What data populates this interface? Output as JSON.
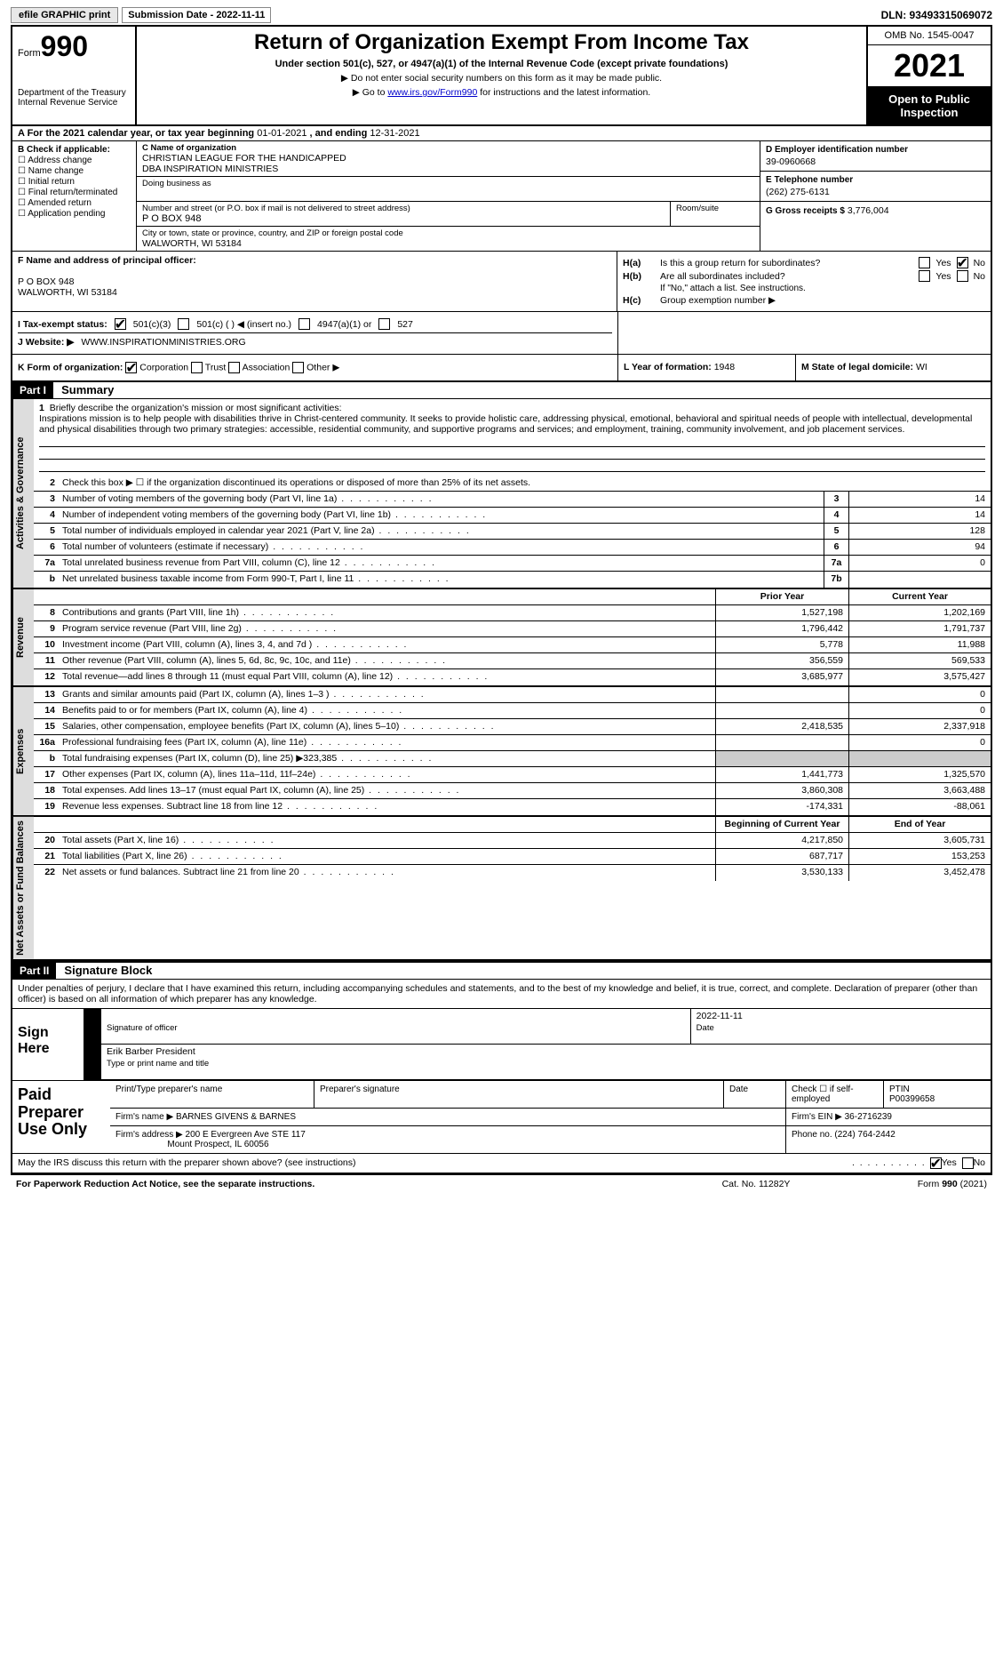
{
  "top": {
    "efile": "efile GRAPHIC print",
    "sub_date_lbl": "Submission Date - 2022-11-11",
    "dln": "DLN: 93493315069072"
  },
  "header": {
    "form_word": "Form",
    "form_num": "990",
    "dept": "Department of the Treasury",
    "irs": "Internal Revenue Service",
    "title": "Return of Organization Exempt From Income Tax",
    "sub1": "Under section 501(c), 527, or 4947(a)(1) of the Internal Revenue Code (except private foundations)",
    "sub2": "▶ Do not enter social security numbers on this form as it may be made public.",
    "sub3_pre": "▶ Go to ",
    "sub3_link": "www.irs.gov/Form990",
    "sub3_post": " for instructions and the latest information.",
    "omb": "OMB No. 1545-0047",
    "year": "2021",
    "inspect": "Open to Public Inspection"
  },
  "lineA": {
    "pre": "A For the 2021 calendar year, or tax year beginning ",
    "begin": "01-01-2021",
    "mid": " , and ending ",
    "end": "12-31-2021"
  },
  "colB": {
    "hd": "B Check if applicable:",
    "opts": [
      "Address change",
      "Name change",
      "Initial return",
      "Final return/terminated",
      "Amended return",
      "Application pending"
    ]
  },
  "colC": {
    "name_lbl": "C Name of organization",
    "name1": "CHRISTIAN LEAGUE FOR THE HANDICAPPED",
    "name2": "DBA INSPIRATION MINISTRIES",
    "dba_lbl": "Doing business as",
    "addr_lbl": "Number and street (or P.O. box if mail is not delivered to street address)",
    "addr": "P O BOX 948",
    "room_lbl": "Room/suite",
    "city_lbl": "City or town, state or province, country, and ZIP or foreign postal code",
    "city": "WALWORTH, WI  53184"
  },
  "colD": {
    "ein_lbl": "D Employer identification number",
    "ein": "39-0960668",
    "phone_lbl": "E Telephone number",
    "phone": "(262) 275-6131",
    "gross_lbl": "G Gross receipts $",
    "gross": "3,776,004"
  },
  "rowF": {
    "lbl": "F  Name and address of principal officer:",
    "addr1": "P O BOX 948",
    "addr2": "WALWORTH, WI  53184"
  },
  "rowH": {
    "ha_lbl": "H(a)",
    "ha_txt": "Is this a group return for subordinates?",
    "hb_lbl": "H(b)",
    "hb_txt": "Are all subordinates included?",
    "hb_note": "If \"No,\" attach a list. See instructions.",
    "hc_lbl": "H(c)",
    "hc_txt": "Group exemption number ▶",
    "yes": "Yes",
    "no": "No"
  },
  "rowI": {
    "lbl": "I  Tax-exempt status:",
    "o1": "501(c)(3)",
    "o2": "501(c) (  ) ◀ (insert no.)",
    "o3": "4947(a)(1) or",
    "o4": "527"
  },
  "rowJ": {
    "lbl": "J  Website: ▶",
    "val": "WWW.INSPIRATIONMINISTRIES.ORG"
  },
  "rowK": {
    "lbl": "K Form of organization:",
    "opts": [
      "Corporation",
      "Trust",
      "Association",
      "Other ▶"
    ],
    "l_lbl": "L Year of formation:",
    "l_val": "1948",
    "m_lbl": "M State of legal domicile:",
    "m_val": "WI"
  },
  "part1": {
    "hdr": "Part I",
    "title": "Summary",
    "l1_lbl": "1",
    "l1_txt": "Briefly describe the organization's mission or most significant activities:",
    "mission": "Inspirations mission is to help people with disabilities thrive in Christ-centered community. It seeks to provide holistic care, addressing physical, emotional, behavioral and spiritual needs of people with intellectual, developmental and physical disabilities through two primary strategies: accessible, residential community, and supportive programs and services; and employment, training, community involvement, and job placement services.",
    "l2": "Check this box ▶ ☐  if the organization discontinued its operations or disposed of more than 25% of its net assets.",
    "tabs": {
      "gov": "Activities & Governance",
      "rev": "Revenue",
      "exp": "Expenses",
      "net": "Net Assets or Fund Balances"
    },
    "rows_gov": [
      {
        "n": "3",
        "d": "Number of voting members of the governing body (Part VI, line 1a)",
        "box": "3",
        "v": "14"
      },
      {
        "n": "4",
        "d": "Number of independent voting members of the governing body (Part VI, line 1b)",
        "box": "4",
        "v": "14"
      },
      {
        "n": "5",
        "d": "Total number of individuals employed in calendar year 2021 (Part V, line 2a)",
        "box": "5",
        "v": "128"
      },
      {
        "n": "6",
        "d": "Total number of volunteers (estimate if necessary)",
        "box": "6",
        "v": "94"
      },
      {
        "n": "7a",
        "d": "Total unrelated business revenue from Part VIII, column (C), line 12",
        "box": "7a",
        "v": "0"
      },
      {
        "n": "b",
        "d": "Net unrelated business taxable income from Form 990-T, Part I, line 11",
        "box": "7b",
        "v": ""
      }
    ],
    "col_hdrs": {
      "prior": "Prior Year",
      "curr": "Current Year"
    },
    "rows_rev": [
      {
        "n": "8",
        "d": "Contributions and grants (Part VIII, line 1h)",
        "p": "1,527,198",
        "c": "1,202,169"
      },
      {
        "n": "9",
        "d": "Program service revenue (Part VIII, line 2g)",
        "p": "1,796,442",
        "c": "1,791,737"
      },
      {
        "n": "10",
        "d": "Investment income (Part VIII, column (A), lines 3, 4, and 7d )",
        "p": "5,778",
        "c": "11,988"
      },
      {
        "n": "11",
        "d": "Other revenue (Part VIII, column (A), lines 5, 6d, 8c, 9c, 10c, and 11e)",
        "p": "356,559",
        "c": "569,533"
      },
      {
        "n": "12",
        "d": "Total revenue—add lines 8 through 11 (must equal Part VIII, column (A), line 12)",
        "p": "3,685,977",
        "c": "3,575,427"
      }
    ],
    "rows_exp": [
      {
        "n": "13",
        "d": "Grants and similar amounts paid (Part IX, column (A), lines 1–3 )",
        "p": "",
        "c": "0"
      },
      {
        "n": "14",
        "d": "Benefits paid to or for members (Part IX, column (A), line 4)",
        "p": "",
        "c": "0"
      },
      {
        "n": "15",
        "d": "Salaries, other compensation, employee benefits (Part IX, column (A), lines 5–10)",
        "p": "2,418,535",
        "c": "2,337,918"
      },
      {
        "n": "16a",
        "d": "Professional fundraising fees (Part IX, column (A), line 11e)",
        "p": "",
        "c": "0"
      },
      {
        "n": "b",
        "d": "Total fundraising expenses (Part IX, column (D), line 25) ▶323,385",
        "p": "GRAY",
        "c": "GRAY"
      },
      {
        "n": "17",
        "d": "Other expenses (Part IX, column (A), lines 11a–11d, 11f–24e)",
        "p": "1,441,773",
        "c": "1,325,570"
      },
      {
        "n": "18",
        "d": "Total expenses. Add lines 13–17 (must equal Part IX, column (A), line 25)",
        "p": "3,860,308",
        "c": "3,663,488"
      },
      {
        "n": "19",
        "d": "Revenue less expenses. Subtract line 18 from line 12",
        "p": "-174,331",
        "c": "-88,061"
      }
    ],
    "net_hdrs": {
      "beg": "Beginning of Current Year",
      "end": "End of Year"
    },
    "rows_net": [
      {
        "n": "20",
        "d": "Total assets (Part X, line 16)",
        "p": "4,217,850",
        "c": "3,605,731"
      },
      {
        "n": "21",
        "d": "Total liabilities (Part X, line 26)",
        "p": "687,717",
        "c": "153,253"
      },
      {
        "n": "22",
        "d": "Net assets or fund balances. Subtract line 21 from line 20",
        "p": "3,530,133",
        "c": "3,452,478"
      }
    ]
  },
  "part2": {
    "hdr": "Part II",
    "title": "Signature Block",
    "decl": "Under penalties of perjury, I declare that I have examined this return, including accompanying schedules and statements, and to the best of my knowledge and belief, it is true, correct, and complete. Declaration of preparer (other than officer) is based on all information of which preparer has any knowledge.",
    "sign_here": "Sign Here",
    "sig_lbl": "Signature of officer",
    "date_lbl": "Date",
    "date_val": "2022-11-11",
    "name_val": "Erik Barber  President",
    "name_lbl": "Type or print name and title",
    "paid": "Paid Preparer Use Only",
    "p_name_lbl": "Print/Type preparer's name",
    "p_sig_lbl": "Preparer's signature",
    "p_date_lbl": "Date",
    "p_check_lbl": "Check ☐ if self-employed",
    "ptin_lbl": "PTIN",
    "ptin": "P00399658",
    "firm_name_lbl": "Firm's name    ▶",
    "firm_name": "BARNES GIVENS & BARNES",
    "firm_ein_lbl": "Firm's EIN ▶",
    "firm_ein": "36-2716239",
    "firm_addr_lbl": "Firm's address ▶",
    "firm_addr1": "200 E Evergreen Ave STE 117",
    "firm_addr2": "Mount Prospect, IL  60056",
    "firm_phone_lbl": "Phone no.",
    "firm_phone": "(224) 764-2442",
    "may": "May the IRS discuss this return with the preparer shown above? (see instructions)",
    "yes": "Yes",
    "no": "No"
  },
  "footer": {
    "l": "For Paperwork Reduction Act Notice, see the separate instructions.",
    "m": "Cat. No. 11282Y",
    "r": "Form 990 (2021)"
  }
}
